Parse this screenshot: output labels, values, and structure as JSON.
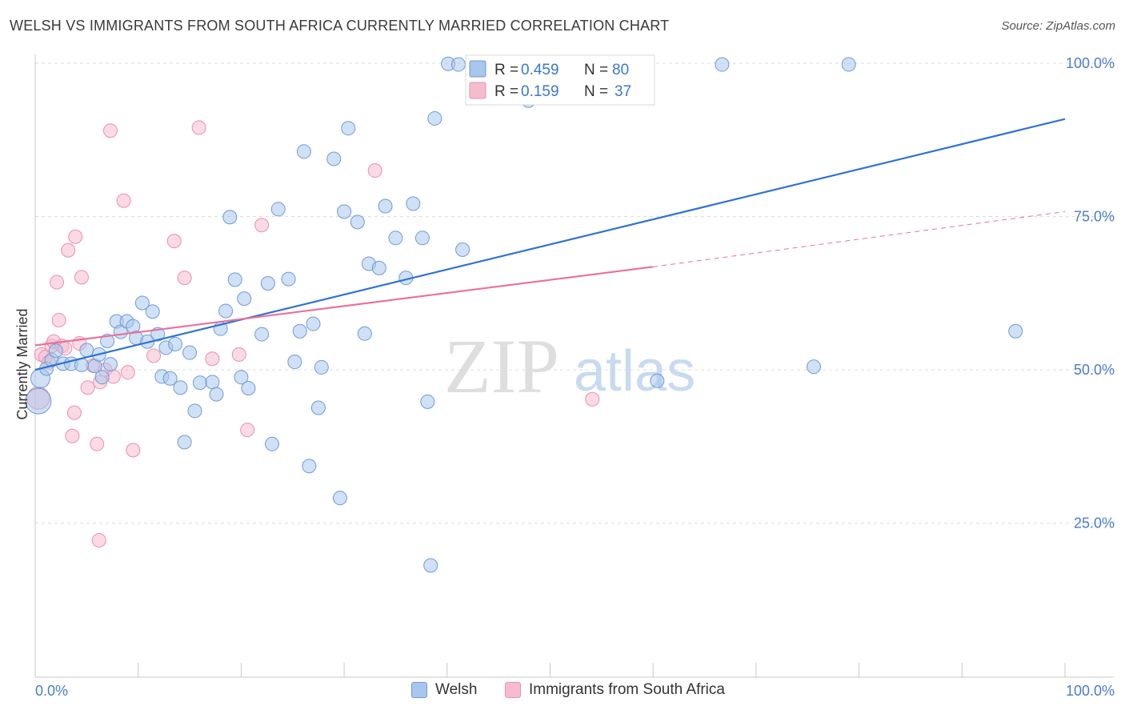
{
  "title": "WELSH VS IMMIGRANTS FROM SOUTH AFRICA CURRENTLY MARRIED CORRELATION CHART",
  "source": "Source: ZipAtlas.com",
  "watermark": {
    "zip": "ZIP",
    "atlas": "atlas"
  },
  "colors": {
    "welsh_fill": "#a9c6ec",
    "welsh_stroke": "#6f9bd6",
    "welsh_line": "#2f73d1",
    "sa_fill": "#f5bccd",
    "sa_stroke": "#eb8fab",
    "sa_line": "#e8709a",
    "grid": "#dcdcdc",
    "axis_text": "#4a7cc9"
  },
  "legend_top": [
    {
      "r_label": "R =",
      "r_value": "0.459",
      "n_label": "N =",
      "n_value": "80"
    },
    {
      "r_label": "R =",
      "r_value": "0.159",
      "n_label": "N =",
      "n_value": "37"
    }
  ],
  "legend_bottom": [
    "Welsh",
    "Immigrants from South Africa"
  ],
  "chart_data": {
    "type": "scatter",
    "title": "WELSH VS IMMIGRANTS FROM SOUTH AFRICA CURRENTLY MARRIED CORRELATION CHART",
    "xlabel": "",
    "ylabel": "Currently Married",
    "xlim": [
      0,
      100
    ],
    "ylim": [
      0,
      102
    ],
    "x_tick_labels": [
      "0.0%",
      "100.0%"
    ],
    "y_tick_labels": [
      "25.0%",
      "50.0%",
      "75.0%",
      "100.0%"
    ],
    "y_ticks": [
      25,
      50,
      75,
      100
    ],
    "grid": true,
    "legend_placement": "top-center",
    "series": [
      {
        "name": "Welsh",
        "R": 0.459,
        "N": 80,
        "trend": {
          "x": [
            0,
            100
          ],
          "y": [
            50.0,
            90.9
          ]
        },
        "points": [
          [
            0.3,
            44.9
          ],
          [
            0.5,
            48.6
          ],
          [
            1.1,
            50.2
          ],
          [
            1.6,
            51.6
          ],
          [
            2.0,
            53.1
          ],
          [
            2.7,
            51.0
          ],
          [
            3.5,
            51.0
          ],
          [
            4.5,
            50.8
          ],
          [
            5.0,
            53.2
          ],
          [
            5.8,
            50.6
          ],
          [
            6.2,
            52.5
          ],
          [
            6.5,
            48.8
          ],
          [
            7.0,
            54.7
          ],
          [
            7.3,
            50.9
          ],
          [
            7.9,
            57.9
          ],
          [
            8.3,
            56.2
          ],
          [
            8.9,
            57.9
          ],
          [
            9.5,
            57.1
          ],
          [
            9.8,
            55.2
          ],
          [
            10.4,
            60.9
          ],
          [
            10.9,
            54.6
          ],
          [
            11.4,
            59.5
          ],
          [
            11.9,
            55.8
          ],
          [
            12.3,
            48.9
          ],
          [
            12.7,
            53.6
          ],
          [
            13.1,
            48.6
          ],
          [
            13.6,
            54.2
          ],
          [
            14.1,
            47.1
          ],
          [
            14.5,
            38.2
          ],
          [
            15.0,
            52.8
          ],
          [
            15.5,
            43.3
          ],
          [
            16.0,
            47.9
          ],
          [
            17.2,
            48.0
          ],
          [
            17.6,
            46.0
          ],
          [
            18.0,
            56.7
          ],
          [
            18.5,
            59.6
          ],
          [
            18.9,
            74.9
          ],
          [
            19.4,
            64.7
          ],
          [
            20.0,
            48.8
          ],
          [
            20.3,
            61.6
          ],
          [
            20.7,
            47.0
          ],
          [
            22.0,
            55.8
          ],
          [
            22.6,
            64.1
          ],
          [
            23.0,
            37.9
          ],
          [
            23.6,
            76.2
          ],
          [
            24.6,
            64.8
          ],
          [
            25.2,
            51.3
          ],
          [
            25.7,
            56.3
          ],
          [
            26.1,
            85.6
          ],
          [
            26.6,
            34.3
          ],
          [
            27.0,
            57.5
          ],
          [
            27.5,
            43.8
          ],
          [
            27.8,
            50.4
          ],
          [
            29.0,
            84.4
          ],
          [
            29.6,
            29.1
          ],
          [
            30.0,
            75.8
          ],
          [
            30.4,
            89.4
          ],
          [
            31.3,
            74.1
          ],
          [
            32.0,
            55.9
          ],
          [
            32.4,
            67.3
          ],
          [
            33.4,
            66.6
          ],
          [
            34.0,
            76.7
          ],
          [
            35.0,
            71.5
          ],
          [
            36.0,
            65.0
          ],
          [
            36.7,
            77.1
          ],
          [
            37.6,
            71.5
          ],
          [
            38.1,
            44.8
          ],
          [
            38.4,
            18.1
          ],
          [
            38.8,
            91.0
          ],
          [
            40.1,
            99.9
          ],
          [
            41.1,
            99.8
          ],
          [
            41.5,
            69.6
          ],
          [
            47.9,
            93.9
          ],
          [
            54.5,
            99.8
          ],
          [
            60.4,
            48.2
          ],
          [
            66.7,
            99.8
          ],
          [
            75.6,
            50.5
          ],
          [
            79.0,
            99.8
          ],
          [
            95.2,
            56.3
          ],
          [
            46.0,
            99.9
          ]
        ],
        "sizes_note": "larger markers near x=0 (y~45 and ~48.6)"
      },
      {
        "name": "Immigrants from South Africa",
        "R": 0.159,
        "N": 37,
        "trend": {
          "x": [
            0,
            60
          ],
          "y": [
            54.0,
            66.8
          ]
        },
        "trend_dashed_extension": {
          "x": [
            60,
            100
          ],
          "y": [
            66.8,
            75.8
          ]
        },
        "points": [
          [
            0.3,
            45.4
          ],
          [
            0.6,
            52.5
          ],
          [
            1.0,
            52.1
          ],
          [
            1.3,
            51.2
          ],
          [
            1.6,
            53.9
          ],
          [
            1.8,
            54.6
          ],
          [
            2.1,
            64.3
          ],
          [
            2.3,
            58.1
          ],
          [
            2.6,
            53.9
          ],
          [
            2.9,
            53.5
          ],
          [
            3.2,
            69.5
          ],
          [
            3.6,
            39.2
          ],
          [
            3.8,
            43.0
          ],
          [
            3.9,
            71.7
          ],
          [
            4.3,
            54.3
          ],
          [
            4.5,
            65.1
          ],
          [
            5.1,
            47.1
          ],
          [
            5.6,
            50.7
          ],
          [
            6.0,
            37.9
          ],
          [
            6.3,
            48.0
          ],
          [
            6.8,
            50.0
          ],
          [
            7.3,
            89.0
          ],
          [
            7.6,
            48.9
          ],
          [
            8.6,
            77.6
          ],
          [
            9.0,
            49.6
          ],
          [
            9.5,
            36.9
          ],
          [
            11.5,
            52.3
          ],
          [
            13.5,
            71.0
          ],
          [
            14.5,
            65.0
          ],
          [
            15.9,
            89.5
          ],
          [
            17.2,
            51.8
          ],
          [
            19.8,
            52.5
          ],
          [
            20.6,
            40.2
          ],
          [
            22.0,
            73.6
          ],
          [
            33.0,
            82.5
          ],
          [
            54.1,
            45.2
          ],
          [
            6.2,
            22.2
          ]
        ]
      }
    ]
  }
}
